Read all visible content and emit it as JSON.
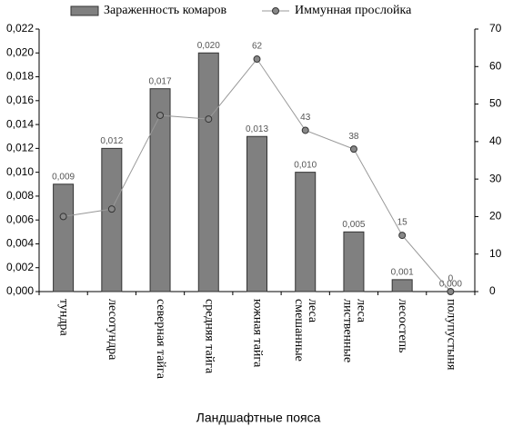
{
  "chart_data": {
    "type": "bar-line",
    "x_label": "Ландшафтные пояса",
    "categories": [
      "тундра",
      "лесотундра",
      "северная тайга",
      "средняя тайга",
      "южная тайга",
      "смешанные\nлеса",
      "лиственные\nлеса",
      "лесостепь",
      "полупустыня"
    ],
    "series": [
      {
        "name": "Зараженность комаров",
        "type": "bar",
        "color": "#808080",
        "values": [
          0.009,
          0.012,
          0.017,
          0.02,
          0.013,
          0.01,
          0.005,
          0.001,
          0.0
        ],
        "value_labels": [
          "0,009",
          "0,012",
          "0,017",
          "0,020",
          "0,013",
          "0,010",
          "0,005",
          "0,001",
          "0,000"
        ]
      },
      {
        "name": "Иммунная прослойка",
        "type": "line",
        "axis": "y2",
        "color": "#999999",
        "values": [
          20,
          22,
          47,
          46,
          62,
          43,
          38,
          15,
          0
        ],
        "value_labels": [
          null,
          null,
          null,
          null,
          "62",
          "43",
          "38",
          "15",
          "0"
        ]
      }
    ],
    "ylim": [
      0,
      0.022
    ],
    "yticks": [
      {
        "value": 0,
        "label": "0,000"
      },
      {
        "value": 0.002,
        "label": "0,002"
      },
      {
        "value": 0.004,
        "label": "0,004"
      },
      {
        "value": 0.006,
        "label": "0,006"
      },
      {
        "value": 0.008,
        "label": "0,008"
      },
      {
        "value": 0.01,
        "label": "0,010"
      },
      {
        "value": 0.012,
        "label": "0,012"
      },
      {
        "value": 0.014,
        "label": "0,014"
      },
      {
        "value": 0.016,
        "label": "0,016"
      },
      {
        "value": 0.018,
        "label": "0,018"
      },
      {
        "value": 0.02,
        "label": "0,020"
      },
      {
        "value": 0.022,
        "label": "0,022"
      }
    ],
    "y2lim": [
      0,
      70
    ],
    "y2ticks": [
      0,
      10,
      20,
      30,
      40,
      50,
      60,
      70
    ]
  }
}
